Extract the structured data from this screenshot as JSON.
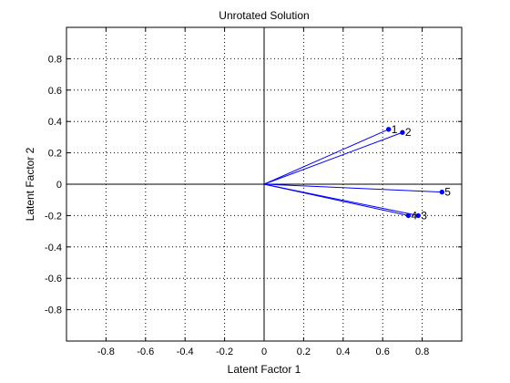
{
  "chart_data": {
    "type": "scatter",
    "title": "Unrotated Solution",
    "xlabel": "Latent Factor 1",
    "ylabel": "Latent Factor 2",
    "xlim": [
      -1,
      1
    ],
    "ylim": [
      -1,
      1
    ],
    "x_ticks": [
      -0.8,
      -0.6,
      -0.4,
      -0.2,
      0,
      0.2,
      0.4,
      0.6,
      0.8
    ],
    "y_ticks": [
      -0.8,
      -0.6,
      -0.4,
      -0.2,
      0,
      0.2,
      0.4,
      0.6,
      0.8
    ],
    "x_tick_labels": [
      "-0.8",
      "-0.6",
      "-0.4",
      "-0.2",
      "0",
      "0.2",
      "0.4",
      "0.6",
      "0.8"
    ],
    "y_tick_labels": [
      "-0.8",
      "-0.6",
      "-0.4",
      "-0.2",
      "0",
      "0.2",
      "0.4",
      "0.6",
      "0.8"
    ],
    "grid": true,
    "line_color": "#0000ff",
    "points": [
      {
        "label": "1",
        "x": 0.63,
        "y": 0.35
      },
      {
        "label": "2",
        "x": 0.7,
        "y": 0.33
      },
      {
        "label": "3",
        "x": 0.78,
        "y": -0.2
      },
      {
        "label": "4",
        "x": 0.73,
        "y": -0.2
      },
      {
        "label": "5",
        "x": 0.9,
        "y": -0.05
      }
    ]
  }
}
